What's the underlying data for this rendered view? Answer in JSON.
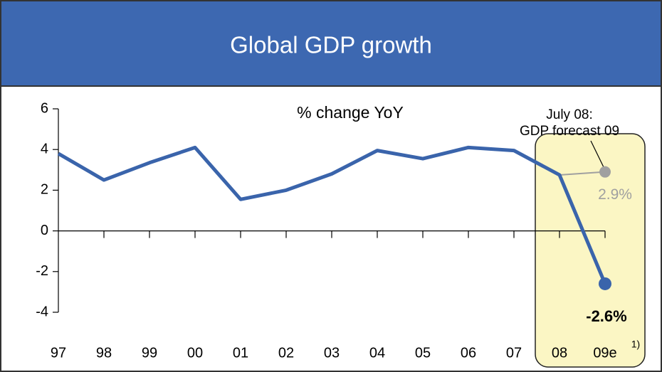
{
  "chart_data": {
    "type": "line",
    "title": "Global GDP growth",
    "subtitle": "% change YoY",
    "categories": [
      "97",
      "98",
      "99",
      "00",
      "01",
      "02",
      "03",
      "04",
      "05",
      "06",
      "07",
      "08",
      "09e"
    ],
    "series": [
      {
        "name": "GDP growth",
        "color": "#3a64ab",
        "values": [
          3.8,
          2.5,
          3.35,
          4.1,
          1.55,
          2.0,
          2.8,
          3.95,
          3.55,
          4.1,
          3.95,
          2.75,
          -2.6
        ],
        "value_labels": [
          null,
          null,
          null,
          null,
          null,
          null,
          null,
          null,
          null,
          null,
          null,
          null,
          "-2.6%"
        ]
      }
    ],
    "forecast": {
      "name": [
        "July 08:",
        "GDP forecast 09"
      ],
      "value": 2.9,
      "label": "2.9%",
      "color": "#a0a0a0"
    },
    "footnote": "1)",
    "ylim": [
      -4,
      6
    ],
    "yticks": [
      -4,
      -2,
      0,
      2,
      4,
      6
    ],
    "grid": false
  }
}
